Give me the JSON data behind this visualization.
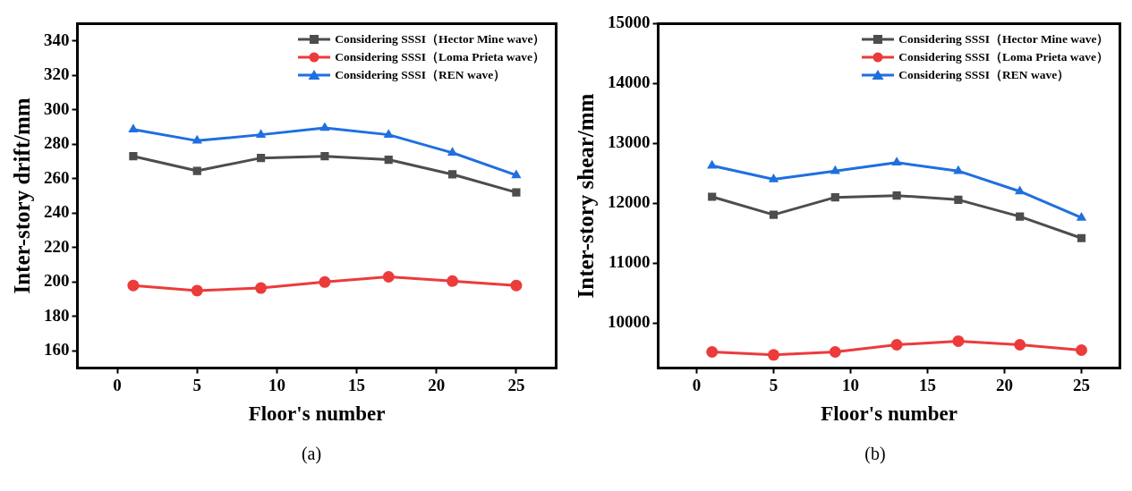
{
  "chart_data": [
    {
      "type": "line",
      "xlabel": "Floor's number",
      "ylabel": "Inter-story drift/mm",
      "annotations": [
        "(a)"
      ],
      "x": [
        1,
        5,
        9,
        13,
        17,
        21,
        25
      ],
      "xlim": [
        -2.5,
        27.5
      ],
      "xticks": [
        0,
        5,
        10,
        15,
        20,
        25
      ],
      "ylim": [
        150,
        350
      ],
      "yticks": [
        160,
        180,
        200,
        220,
        240,
        260,
        280,
        300,
        320,
        340
      ],
      "grid": false,
      "legend": "top right",
      "line_style": "solid",
      "series": [
        {
          "name": "Considering SSSI（Hector Mine wave）",
          "color": "#4d4d4d",
          "marker": "square",
          "values": [
            273,
            264.5,
            272,
            273,
            271,
            262.5,
            252
          ]
        },
        {
          "name": "Considering SSSI（Loma Prieta wave）",
          "color": "#ec3b3b",
          "marker": "circle",
          "values": [
            198,
            195,
            196.5,
            200,
            203,
            200.5,
            198
          ]
        },
        {
          "name": "Considering SSSI（REN wave）",
          "color": "#1f6fe0",
          "marker": "triangle",
          "values": [
            288.5,
            282,
            285.5,
            289.5,
            285.5,
            275,
            262
          ]
        }
      ]
    },
    {
      "type": "line",
      "xlabel": "Floor's number",
      "ylabel": "Inter-story shear/mm",
      "annotations": [
        "(b)"
      ],
      "x": [
        1,
        5,
        9,
        13,
        17,
        21,
        25
      ],
      "xlim": [
        -2.5,
        27.5
      ],
      "xticks": [
        0,
        5,
        10,
        15,
        20,
        25
      ],
      "ylim": [
        9250,
        15000
      ],
      "yticks": [
        10000,
        11000,
        12000,
        13000,
        14000,
        15000
      ],
      "grid": false,
      "legend": "top right",
      "line_style": "solid",
      "series": [
        {
          "name": "Considering SSSI（Hector Mine wave）",
          "color": "#4d4d4d",
          "marker": "square",
          "values": [
            12110,
            11810,
            12100,
            12130,
            12060,
            11780,
            11420
          ]
        },
        {
          "name": "Considering SSSI（Loma Prieta wave）",
          "color": "#ec3b3b",
          "marker": "circle",
          "values": [
            9520,
            9470,
            9520,
            9640,
            9700,
            9640,
            9550
          ]
        },
        {
          "name": "Considering SSSI（REN wave）",
          "color": "#1f6fe0",
          "marker": "triangle",
          "values": [
            12630,
            12400,
            12540,
            12680,
            12540,
            12200,
            11760
          ]
        }
      ]
    }
  ]
}
